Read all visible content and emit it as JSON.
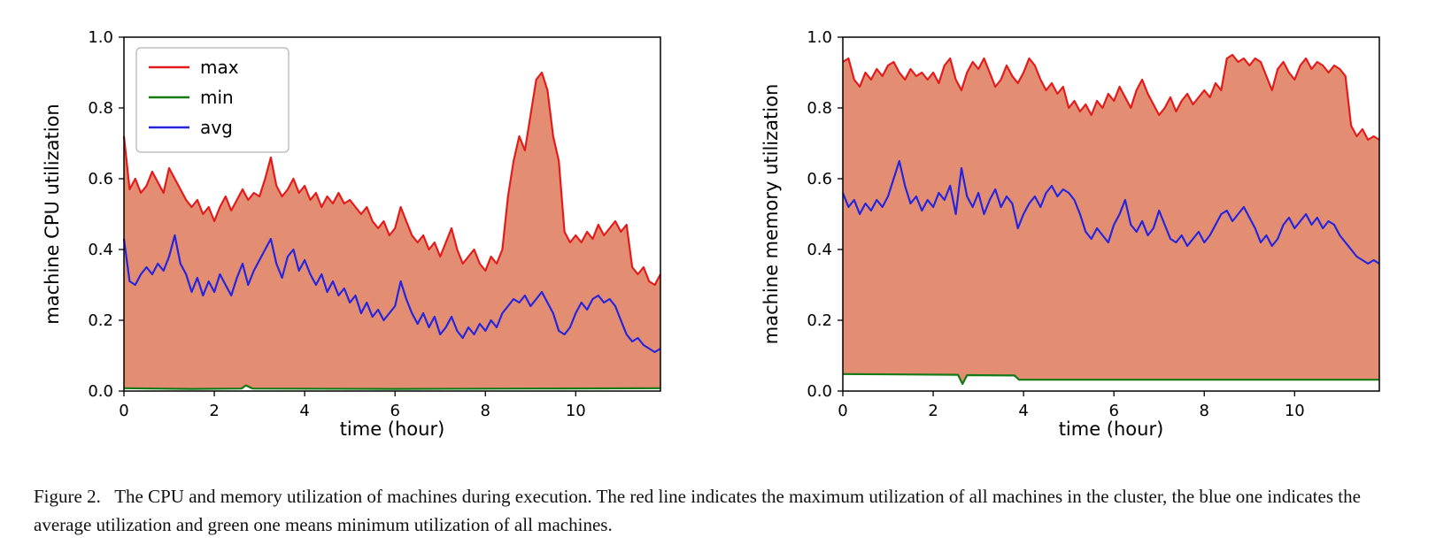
{
  "page": {
    "background": "#ffffff"
  },
  "caption": {
    "text": "Figure 2.   The CPU and memory utilization of machines during execution. The red line indicates the maximum utilization of all machines in the cluster, the blue one indicates the average utilization and green one means minimum utilization of all machines."
  },
  "colors": {
    "max_line": "#e31b1b",
    "min_line": "#147a14",
    "avg_line": "#2525dd",
    "fill": "#e2876b",
    "axis": "#000000",
    "legend_border": "#b3b3b3"
  },
  "chart_data": [
    {
      "type": "line",
      "title": "",
      "xlabel": "time (hour)",
      "ylabel": "machine CPU utilization",
      "xlim": [
        0,
        11.875
      ],
      "ylim": [
        0,
        1
      ],
      "xticks": [
        0,
        2,
        4,
        6,
        8,
        10
      ],
      "yticks": [
        0.0,
        0.2,
        0.4,
        0.6,
        0.8,
        1.0
      ],
      "grid": false,
      "legend": {
        "show": true,
        "position": "upper-left",
        "entries": [
          "max",
          "min",
          "avg"
        ]
      },
      "fill_between": {
        "upper": "max",
        "lower": "min",
        "color": "#e2876b"
      },
      "x_start": 0,
      "x_step": 0.125,
      "series": [
        {
          "name": "max",
          "color": "#e31b1b",
          "values": [
            0.72,
            0.57,
            0.6,
            0.56,
            0.58,
            0.62,
            0.59,
            0.56,
            0.63,
            0.6,
            0.57,
            0.54,
            0.52,
            0.54,
            0.5,
            0.52,
            0.48,
            0.52,
            0.55,
            0.51,
            0.54,
            0.57,
            0.54,
            0.56,
            0.55,
            0.6,
            0.66,
            0.58,
            0.55,
            0.57,
            0.6,
            0.56,
            0.58,
            0.54,
            0.56,
            0.52,
            0.55,
            0.53,
            0.56,
            0.53,
            0.54,
            0.52,
            0.5,
            0.52,
            0.48,
            0.46,
            0.48,
            0.44,
            0.46,
            0.52,
            0.48,
            0.44,
            0.42,
            0.44,
            0.4,
            0.42,
            0.38,
            0.42,
            0.46,
            0.4,
            0.36,
            0.38,
            0.4,
            0.36,
            0.34,
            0.38,
            0.36,
            0.4,
            0.55,
            0.65,
            0.72,
            0.68,
            0.78,
            0.88,
            0.9,
            0.85,
            0.72,
            0.65,
            0.45,
            0.42,
            0.44,
            0.42,
            0.45,
            0.43,
            0.47,
            0.44,
            0.46,
            0.48,
            0.45,
            0.47,
            0.35,
            0.33,
            0.35,
            0.31,
            0.3,
            0.33
          ]
        },
        {
          "name": "min",
          "color": "#147a14",
          "x": [
            0,
            1.5,
            2.6,
            2.7,
            2.85,
            6,
            9,
            11.875
          ],
          "values": [
            0.008,
            0.006,
            0.007,
            0.016,
            0.007,
            0.006,
            0.007,
            0.008
          ]
        },
        {
          "name": "avg",
          "color": "#2525dd",
          "values": [
            0.43,
            0.31,
            0.3,
            0.33,
            0.35,
            0.33,
            0.36,
            0.34,
            0.38,
            0.44,
            0.36,
            0.33,
            0.28,
            0.32,
            0.27,
            0.31,
            0.28,
            0.33,
            0.3,
            0.27,
            0.32,
            0.36,
            0.3,
            0.34,
            0.37,
            0.4,
            0.43,
            0.36,
            0.32,
            0.38,
            0.4,
            0.34,
            0.37,
            0.33,
            0.3,
            0.33,
            0.28,
            0.31,
            0.27,
            0.29,
            0.25,
            0.27,
            0.22,
            0.25,
            0.21,
            0.23,
            0.2,
            0.22,
            0.24,
            0.31,
            0.26,
            0.22,
            0.19,
            0.22,
            0.18,
            0.21,
            0.16,
            0.18,
            0.21,
            0.17,
            0.15,
            0.18,
            0.16,
            0.19,
            0.17,
            0.2,
            0.18,
            0.22,
            0.24,
            0.26,
            0.25,
            0.27,
            0.24,
            0.26,
            0.28,
            0.25,
            0.22,
            0.17,
            0.16,
            0.18,
            0.22,
            0.25,
            0.23,
            0.26,
            0.27,
            0.25,
            0.26,
            0.24,
            0.2,
            0.16,
            0.14,
            0.15,
            0.13,
            0.12,
            0.11,
            0.12
          ]
        }
      ]
    },
    {
      "type": "line",
      "title": "",
      "xlabel": "time (hour)",
      "ylabel": "machine memory utilization",
      "xlim": [
        0,
        11.875
      ],
      "ylim": [
        0,
        1
      ],
      "xticks": [
        0,
        2,
        4,
        6,
        8,
        10
      ],
      "yticks": [
        0.0,
        0.2,
        0.4,
        0.6,
        0.8,
        1.0
      ],
      "grid": false,
      "legend": {
        "show": false,
        "entries": []
      },
      "fill_between": {
        "upper": "max",
        "lower": "min",
        "color": "#e2876b"
      },
      "x_start": 0,
      "x_step": 0.125,
      "series": [
        {
          "name": "max",
          "color": "#e31b1b",
          "values": [
            0.93,
            0.94,
            0.88,
            0.86,
            0.9,
            0.88,
            0.91,
            0.89,
            0.92,
            0.93,
            0.9,
            0.88,
            0.91,
            0.89,
            0.9,
            0.88,
            0.9,
            0.87,
            0.92,
            0.94,
            0.88,
            0.85,
            0.9,
            0.93,
            0.91,
            0.94,
            0.9,
            0.86,
            0.88,
            0.92,
            0.89,
            0.87,
            0.9,
            0.94,
            0.92,
            0.88,
            0.85,
            0.87,
            0.84,
            0.86,
            0.8,
            0.82,
            0.79,
            0.81,
            0.78,
            0.82,
            0.8,
            0.84,
            0.82,
            0.86,
            0.83,
            0.8,
            0.85,
            0.88,
            0.84,
            0.81,
            0.78,
            0.8,
            0.83,
            0.79,
            0.82,
            0.84,
            0.81,
            0.83,
            0.85,
            0.83,
            0.87,
            0.85,
            0.94,
            0.95,
            0.93,
            0.94,
            0.92,
            0.94,
            0.93,
            0.89,
            0.85,
            0.91,
            0.93,
            0.9,
            0.88,
            0.92,
            0.94,
            0.91,
            0.93,
            0.92,
            0.9,
            0.92,
            0.91,
            0.89,
            0.75,
            0.72,
            0.74,
            0.71,
            0.72,
            0.71
          ]
        },
        {
          "name": "min",
          "color": "#147a14",
          "x": [
            0,
            2.55,
            2.65,
            2.75,
            3.8,
            3.9,
            11.875
          ],
          "values": [
            0.048,
            0.046,
            0.02,
            0.045,
            0.044,
            0.032,
            0.032
          ]
        },
        {
          "name": "avg",
          "color": "#2525dd",
          "values": [
            0.56,
            0.52,
            0.54,
            0.5,
            0.53,
            0.51,
            0.54,
            0.52,
            0.55,
            0.6,
            0.65,
            0.58,
            0.53,
            0.55,
            0.51,
            0.54,
            0.52,
            0.56,
            0.54,
            0.58,
            0.5,
            0.63,
            0.55,
            0.52,
            0.56,
            0.5,
            0.54,
            0.57,
            0.52,
            0.55,
            0.53,
            0.46,
            0.5,
            0.53,
            0.55,
            0.52,
            0.56,
            0.58,
            0.55,
            0.57,
            0.56,
            0.54,
            0.5,
            0.45,
            0.43,
            0.46,
            0.44,
            0.42,
            0.47,
            0.5,
            0.54,
            0.47,
            0.45,
            0.48,
            0.44,
            0.46,
            0.51,
            0.47,
            0.43,
            0.42,
            0.44,
            0.41,
            0.43,
            0.45,
            0.42,
            0.44,
            0.47,
            0.5,
            0.51,
            0.48,
            0.5,
            0.52,
            0.49,
            0.46,
            0.42,
            0.44,
            0.41,
            0.43,
            0.47,
            0.49,
            0.46,
            0.48,
            0.5,
            0.47,
            0.49,
            0.46,
            0.48,
            0.47,
            0.44,
            0.42,
            0.4,
            0.38,
            0.37,
            0.36,
            0.37,
            0.36
          ]
        }
      ]
    }
  ]
}
